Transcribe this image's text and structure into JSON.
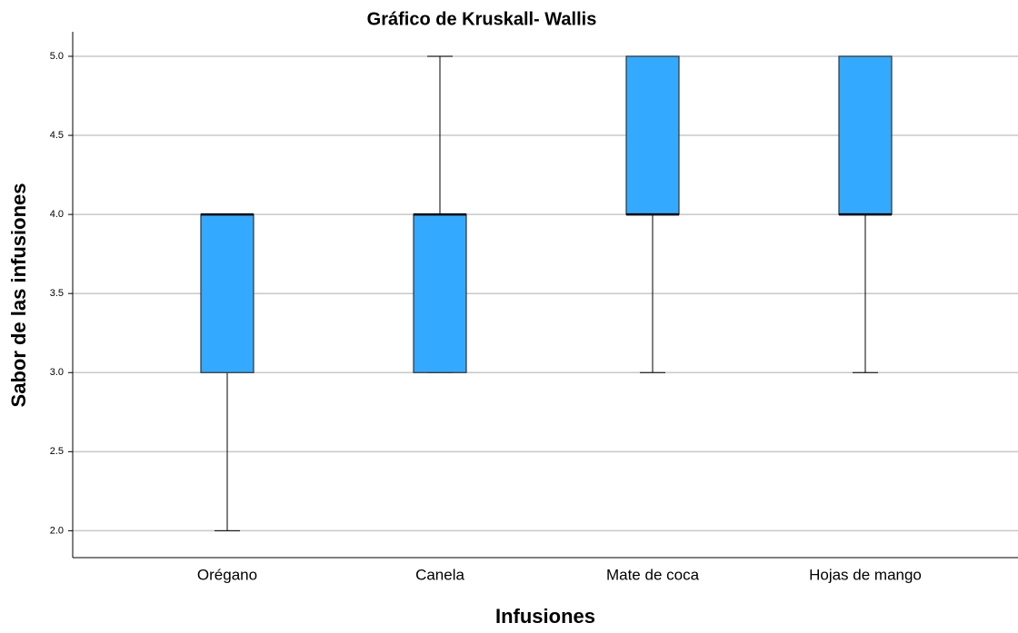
{
  "chart_data": {
    "type": "box",
    "title": "Gráfico de Kruskall- Wallis",
    "x_label": "Infusiones",
    "y_label": "Sabor de las infusiones",
    "categories": [
      "Orégano",
      "Canela",
      "Mate de coca",
      "Hojas de mango"
    ],
    "boxes": [
      {
        "min": 2,
        "q1": 3,
        "median": 4,
        "q3": 4,
        "max": 4
      },
      {
        "min": 3,
        "q1": 3,
        "median": 4,
        "q3": 4,
        "max": 5
      },
      {
        "min": 3,
        "q1": 4,
        "median": 4,
        "q3": 5,
        "max": 5
      },
      {
        "min": 3,
        "q1": 4,
        "median": 4,
        "q3": 5,
        "max": 5
      }
    ],
    "color": "#33aaff",
    "ylim": [
      1.83,
      5.155
    ],
    "yticks": [
      {
        "value": 2,
        "label": "2.0"
      },
      {
        "value": 2.5,
        "label": "2.5"
      },
      {
        "value": 3,
        "label": "3.0"
      },
      {
        "value": 3.5,
        "label": "3.5"
      },
      {
        "value": 4,
        "label": "4.0"
      },
      {
        "value": 4.5,
        "label": "4.5"
      },
      {
        "value": 5,
        "label": "5.0"
      }
    ],
    "grid": true
  }
}
